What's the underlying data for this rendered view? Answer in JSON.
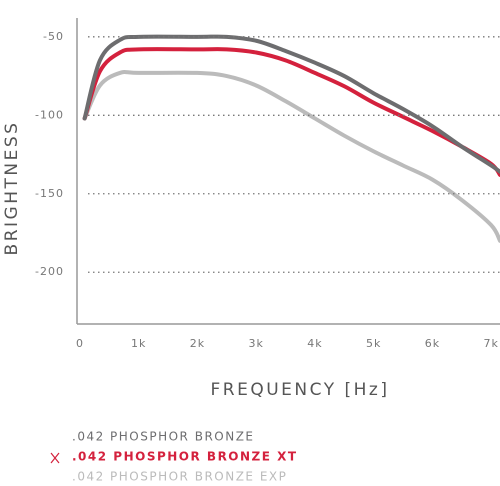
{
  "chart_data": {
    "type": "line",
    "x_label": "FREQUENCY [Hz]",
    "y_label": "BRIGHTNESS",
    "x": [
      80,
      340,
      680,
      1000,
      2000,
      2500,
      3000,
      3500,
      4000,
      4500,
      5000,
      5500,
      6000,
      6500,
      7000,
      7150
    ],
    "series": [
      {
        "name": ".042 PHOSPHOR BRONZE",
        "color": "#6d6d6f",
        "values": [
          -102,
          -65,
          -52,
          -50,
          -50,
          -50,
          -52.5,
          -59,
          -66.5,
          -75,
          -86,
          -96,
          -107,
          -120,
          -132,
          -136
        ]
      },
      {
        "name": ".042 PHOSPHOR BRONZE XT",
        "color": "#d4213d",
        "values": [
          -102,
          -72,
          -60,
          -58,
          -58,
          -58,
          -60,
          -65,
          -73,
          -81.5,
          -92,
          -101,
          -110,
          -120,
          -131,
          -138
        ]
      },
      {
        "name": ".042 PHOSPHOR BRONZE EXP",
        "color": "#bbbbbb",
        "values": [
          -102,
          -81,
          -73,
          -73,
          -73,
          -75,
          -81,
          -91,
          -102,
          -113,
          -123,
          -132,
          -141,
          -154,
          -170,
          -180
        ]
      }
    ],
    "xlim": [
      -50,
      7150
    ],
    "ylim": [
      -233,
      -38
    ],
    "xticks": [
      0,
      {
        "value": 1000,
        "label": "1k"
      },
      {
        "value": 2000,
        "label": "2k"
      },
      {
        "value": 3000,
        "label": "3k"
      },
      {
        "value": 4000,
        "label": "4k"
      },
      {
        "value": 5000,
        "label": "5k"
      },
      {
        "value": 6000,
        "label": "6k"
      },
      {
        "value": 7000,
        "label": "7k"
      }
    ],
    "yticks": [
      -50,
      -100,
      -150,
      -200
    ],
    "grid": true
  }
}
